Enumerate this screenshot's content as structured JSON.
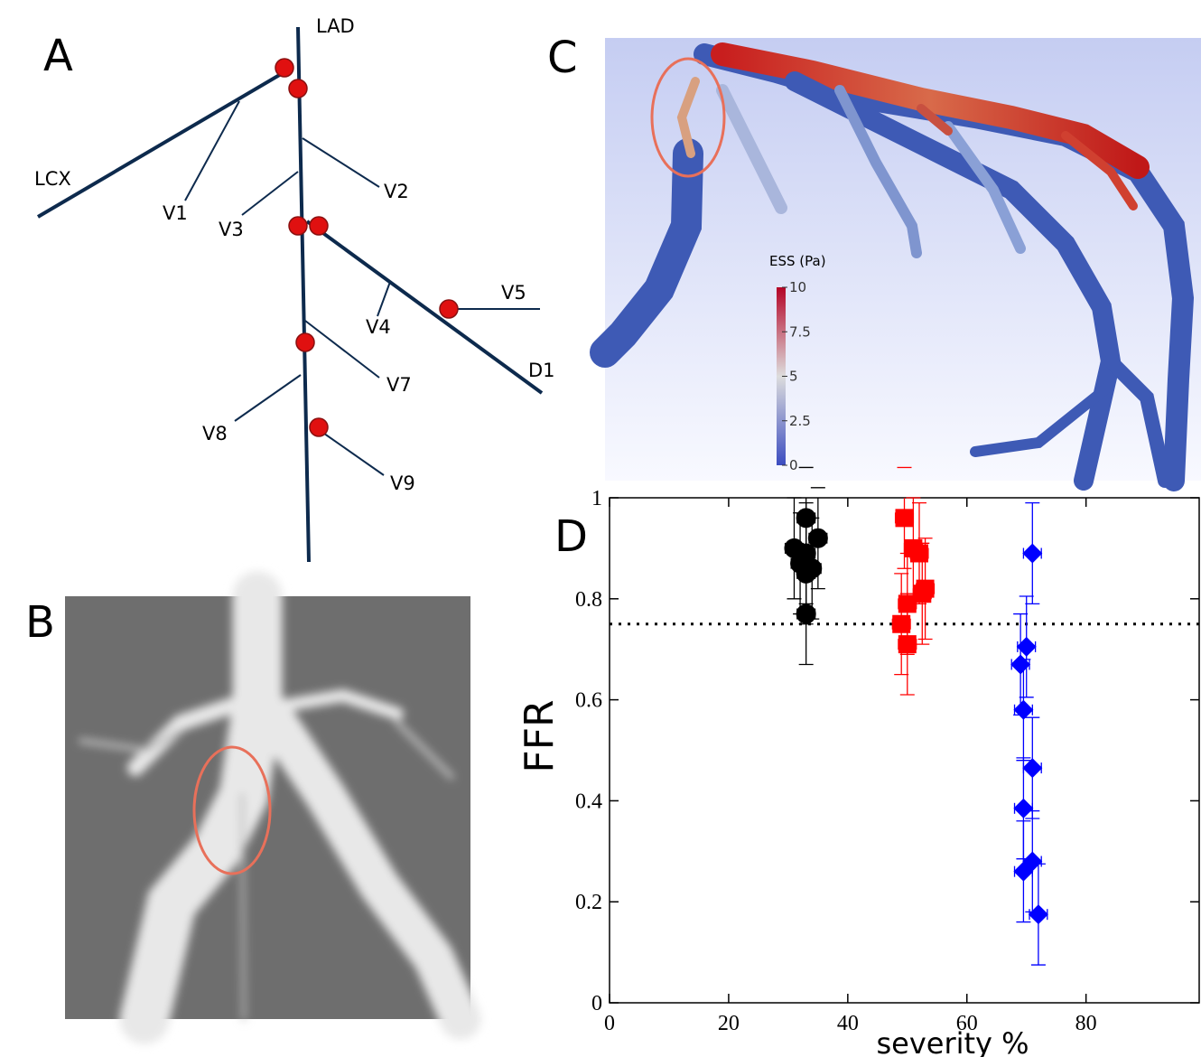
{
  "panels": {
    "a": {
      "label": "A",
      "vessels": {
        "lad": "LAD",
        "lcx": "LCX",
        "v1": "V1",
        "v2": "V2",
        "v3": "V3",
        "v4": "V4",
        "v5": "V5",
        "d1": "D1",
        "v7": "V7",
        "v8": "V8",
        "v9": "V9"
      }
    },
    "b": {
      "label": "B"
    },
    "c": {
      "label": "C",
      "colorbar": {
        "title": "ESS (Pa)",
        "lim": [
          0,
          10
        ],
        "ticks": [
          10,
          7.5,
          5,
          2.5,
          0
        ]
      }
    },
    "d": {
      "label": "D"
    }
  },
  "chart_data": {
    "type": "scatter",
    "x_label": "severity %",
    "y_label": "FFR",
    "xlim": [
      0,
      99
    ],
    "ylim": [
      0,
      1
    ],
    "xticks": [
      0,
      20,
      40,
      60,
      80
    ],
    "yticks": [
      0,
      0.2,
      0.4,
      0.6,
      0.8,
      1
    ],
    "threshold": 0.75,
    "series": [
      {
        "color": "#000000",
        "marker": "circle",
        "x": [
          33,
          35,
          31,
          33,
          32,
          34,
          33,
          33
        ],
        "values": [
          0.96,
          0.92,
          0.9,
          0.89,
          0.87,
          0.86,
          0.85,
          0.77
        ],
        "yerr": [
          0.1,
          0.1,
          0.1,
          0.1,
          0.1,
          0.1,
          0.1,
          0.1
        ],
        "xerr": [
          1.5,
          1.5,
          1.5,
          1.5,
          1.5,
          1.5,
          1.5,
          1.5
        ]
      },
      {
        "color": "#ff0000",
        "marker": "square",
        "x": [
          49.5,
          51,
          52,
          53,
          52.5,
          50,
          49,
          50
        ],
        "values": [
          0.96,
          0.9,
          0.89,
          0.82,
          0.81,
          0.79,
          0.75,
          0.71
        ],
        "yerr": [
          0.1,
          0.1,
          0.1,
          0.1,
          0.1,
          0.1,
          0.1,
          0.1
        ],
        "xerr": [
          1.5,
          1.5,
          1.5,
          1.5,
          1.5,
          1.5,
          1.5,
          1.5
        ]
      },
      {
        "color": "#0000ff",
        "marker": "diamond",
        "x": [
          71,
          70,
          69,
          69.5,
          71,
          69.5,
          71,
          69.5,
          72
        ],
        "values": [
          0.89,
          0.705,
          0.67,
          0.58,
          0.465,
          0.385,
          0.28,
          0.26,
          0.175
        ],
        "yerr": [
          0.1,
          0.1,
          0.1,
          0.1,
          0.1,
          0.1,
          0.1,
          0.1,
          0.1
        ],
        "xerr": [
          1.5,
          1.5,
          1.5,
          1.5,
          1.5,
          1.5,
          1.5,
          1.5,
          1.5
        ]
      }
    ]
  }
}
